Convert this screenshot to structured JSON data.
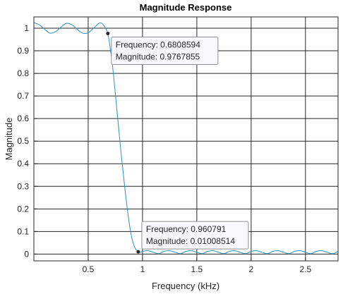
{
  "chart_data": {
    "type": "line",
    "title": "Magnitude Response",
    "xlabel": "Frequency (kHz)",
    "ylabel": "Magnitude",
    "xlim": [
      0,
      2.8
    ],
    "ylim": [
      -0.03,
      1.05
    ],
    "grid": true,
    "x_ticks": [
      0.5,
      1,
      1.5,
      2,
      2.5
    ],
    "x_tick_labels": [
      "0.5",
      "1",
      "1.5",
      "2",
      "2.5"
    ],
    "y_ticks": [
      0,
      0.1,
      0.2,
      0.3,
      0.4,
      0.5,
      0.6,
      0.7,
      0.8,
      0.9,
      1
    ],
    "y_tick_labels": [
      "0",
      "0.1",
      "0.2",
      "0.3",
      "0.4",
      "0.5",
      "0.6",
      "0.7",
      "0.8",
      "0.9",
      "1"
    ],
    "series": [
      {
        "color": "#2a8fc4",
        "points": [
          [
            0.0,
            1.025
          ],
          [
            0.05,
            1.015
          ],
          [
            0.1,
            0.995
          ],
          [
            0.15,
            0.978
          ],
          [
            0.2,
            0.985
          ],
          [
            0.25,
            1.005
          ],
          [
            0.3,
            1.022
          ],
          [
            0.35,
            1.015
          ],
          [
            0.4,
            0.995
          ],
          [
            0.45,
            0.978
          ],
          [
            0.5,
            0.98
          ],
          [
            0.55,
            1.0
          ],
          [
            0.6,
            1.022
          ],
          [
            0.63,
            1.02
          ],
          [
            0.66,
            1.0
          ],
          [
            0.6808594,
            0.9767855
          ],
          [
            0.7,
            0.92
          ],
          [
            0.72,
            0.85
          ],
          [
            0.74,
            0.76
          ],
          [
            0.76,
            0.66
          ],
          [
            0.78,
            0.56
          ],
          [
            0.8,
            0.46
          ],
          [
            0.82,
            0.37
          ],
          [
            0.84,
            0.28
          ],
          [
            0.86,
            0.2
          ],
          [
            0.88,
            0.13
          ],
          [
            0.9,
            0.075
          ],
          [
            0.92,
            0.04
          ],
          [
            0.94,
            0.02
          ],
          [
            0.960791,
            0.01008514
          ],
          [
            0.98,
            0.008
          ],
          [
            1.0,
            0.012
          ],
          [
            1.05,
            0.015
          ],
          [
            1.1,
            0.008
          ],
          [
            1.15,
            0.002
          ],
          [
            1.2,
            0.012
          ],
          [
            1.25,
            0.015
          ],
          [
            1.3,
            0.008
          ],
          [
            1.35,
            0.002
          ],
          [
            1.4,
            0.012
          ],
          [
            1.45,
            0.015
          ],
          [
            1.5,
            0.008
          ],
          [
            1.55,
            0.002
          ],
          [
            1.6,
            0.012
          ],
          [
            1.65,
            0.015
          ],
          [
            1.7,
            0.008
          ],
          [
            1.75,
            0.002
          ],
          [
            1.8,
            0.012
          ],
          [
            1.85,
            0.015
          ],
          [
            1.9,
            0.008
          ],
          [
            1.95,
            0.002
          ],
          [
            2.0,
            0.012
          ],
          [
            2.05,
            0.015
          ],
          [
            2.1,
            0.008
          ],
          [
            2.15,
            0.002
          ],
          [
            2.2,
            0.012
          ],
          [
            2.25,
            0.015
          ],
          [
            2.3,
            0.008
          ],
          [
            2.35,
            0.002
          ],
          [
            2.4,
            0.012
          ],
          [
            2.45,
            0.015
          ],
          [
            2.5,
            0.008
          ],
          [
            2.55,
            0.002
          ],
          [
            2.6,
            0.012
          ],
          [
            2.65,
            0.015
          ],
          [
            2.7,
            0.008
          ],
          [
            2.75,
            0.002
          ],
          [
            2.8,
            0.012
          ]
        ]
      }
    ],
    "datatips": [
      {
        "x": 0.6808594,
        "y": 0.9767855,
        "lines": [
          "Frequency: 0.6808594",
          "Magnitude: 0.9767855"
        ],
        "placement": "bottom-right"
      },
      {
        "x": 0.960791,
        "y": 0.01008514,
        "lines": [
          "Frequency: 0.960791",
          "Magnitude: 0.01008514"
        ],
        "placement": "top-right"
      }
    ]
  }
}
